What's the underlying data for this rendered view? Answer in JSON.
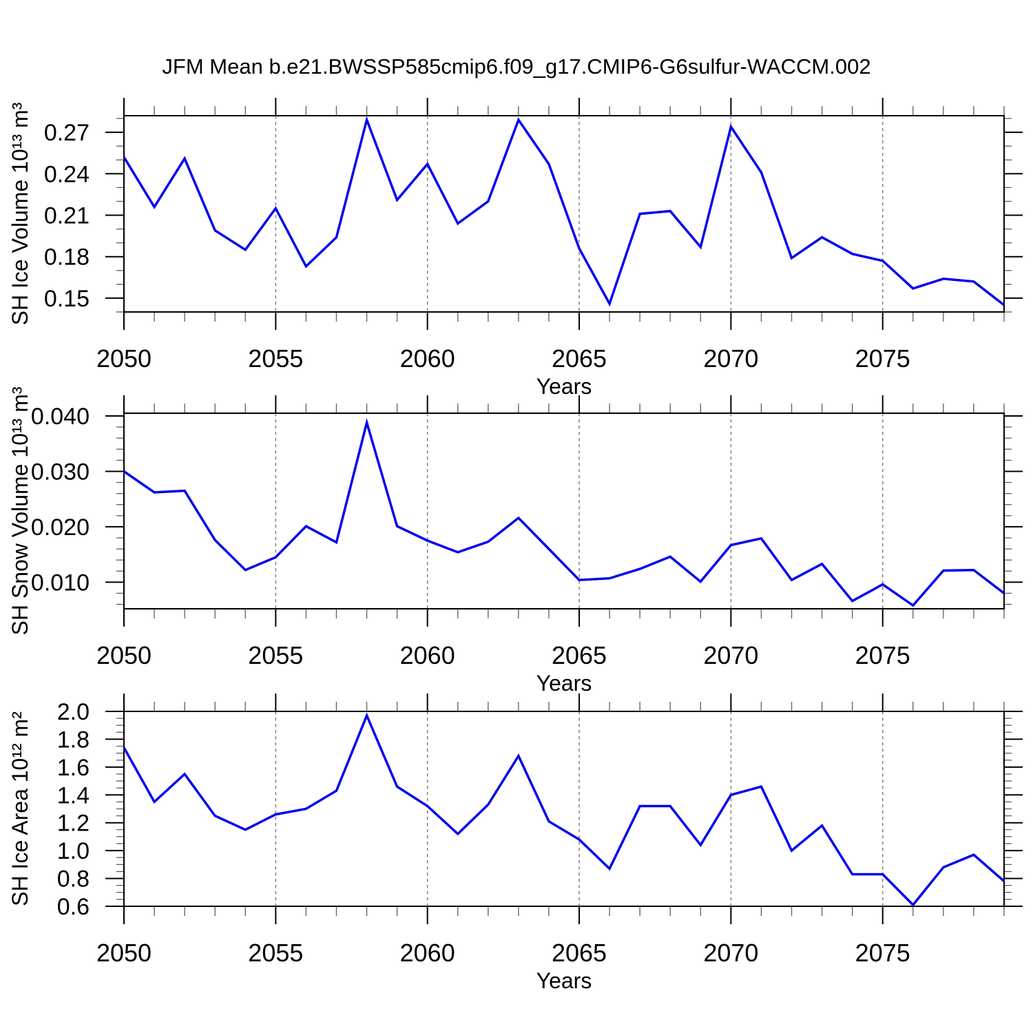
{
  "figure": {
    "title": "JFM Mean b.e21.BWSSP585cmip6.f09_g17.CMIP6-G6sulfur-WACCM.002"
  },
  "chart_data": [
    {
      "type": "line",
      "key": "sh-ice-volume",
      "ylabel": "SH Ice Volume 10¹³ m³",
      "xlabel": "Years",
      "x": [
        2050,
        2051,
        2052,
        2053,
        2054,
        2055,
        2056,
        2057,
        2058,
        2059,
        2060,
        2061,
        2062,
        2063,
        2064,
        2065,
        2066,
        2067,
        2068,
        2069,
        2070,
        2071,
        2072,
        2073,
        2074,
        2075,
        2076,
        2077,
        2078,
        2079
      ],
      "series": [
        {
          "name": "SH Ice Volume",
          "color": "#0000ee",
          "values": [
            0.252,
            0.216,
            0.251,
            0.199,
            0.185,
            0.215,
            0.173,
            0.194,
            0.279,
            0.221,
            0.247,
            0.204,
            0.22,
            0.279,
            0.247,
            0.186,
            0.146,
            0.211,
            0.213,
            0.187,
            0.274,
            0.241,
            0.179,
            0.194,
            0.182,
            0.177,
            0.157,
            0.164,
            0.162,
            0.145
          ]
        }
      ],
      "xlim": [
        2050,
        2079
      ],
      "ylim": [
        0.14,
        0.282
      ],
      "yticks_major": [
        0.27,
        0.24,
        0.21,
        0.18,
        0.15
      ],
      "ytick_labels": [
        "0.27",
        "0.24",
        "0.21",
        "0.18",
        "0.15"
      ],
      "ytick_minor_step": 0.01,
      "xticks_major": [
        2050,
        2055,
        2060,
        2065,
        2070,
        2075
      ],
      "xtick_labels": [
        "2050",
        "2055",
        "2060",
        "2065",
        "2070",
        "2075"
      ],
      "xtick_minor_step": 1,
      "gridlines_x": [
        2055,
        2060,
        2065,
        2070,
        2075
      ],
      "grid_style": "dashed-vertical",
      "legend": "none"
    },
    {
      "type": "line",
      "key": "sh-snow-volume",
      "ylabel": "SH Snow Volume 10¹³ m³",
      "xlabel": "Years",
      "x": [
        2050,
        2051,
        2052,
        2053,
        2054,
        2055,
        2056,
        2057,
        2058,
        2059,
        2060,
        2061,
        2062,
        2063,
        2064,
        2065,
        2066,
        2067,
        2068,
        2069,
        2070,
        2071,
        2072,
        2073,
        2074,
        2075,
        2076,
        2077,
        2078,
        2079
      ],
      "series": [
        {
          "name": "SH Snow Volume",
          "color": "#0000ee",
          "values": [
            0.03,
            0.0262,
            0.0265,
            0.0176,
            0.0122,
            0.0145,
            0.0201,
            0.0172,
            0.0388,
            0.0201,
            0.0175,
            0.0154,
            0.0173,
            0.0216,
            0.016,
            0.0104,
            0.0107,
            0.0124,
            0.0146,
            0.0101,
            0.0167,
            0.0179,
            0.0104,
            0.0133,
            0.0066,
            0.0096,
            0.0058,
            0.0121,
            0.0122,
            0.008
          ]
        }
      ],
      "xlim": [
        2050,
        2079
      ],
      "ylim": [
        0.0052,
        0.0405
      ],
      "yticks_major": [
        0.04,
        0.03,
        0.02,
        0.01
      ],
      "ytick_labels": [
        "0.040",
        "0.030",
        "0.020",
        "0.010"
      ],
      "ytick_minor_step": 0.002,
      "xticks_major": [
        2050,
        2055,
        2060,
        2065,
        2070,
        2075
      ],
      "xtick_labels": [
        "2050",
        "2055",
        "2060",
        "2065",
        "2070",
        "2075"
      ],
      "xtick_minor_step": 1,
      "gridlines_x": [
        2055,
        2060,
        2065,
        2070,
        2075
      ],
      "grid_style": "dashed-vertical",
      "legend": "none"
    },
    {
      "type": "line",
      "key": "sh-ice-area",
      "ylabel": "SH Ice Area 10¹² m²",
      "xlabel": "Years",
      "x": [
        2050,
        2051,
        2052,
        2053,
        2054,
        2055,
        2056,
        2057,
        2058,
        2059,
        2060,
        2061,
        2062,
        2063,
        2064,
        2065,
        2066,
        2067,
        2068,
        2069,
        2070,
        2071,
        2072,
        2073,
        2074,
        2075,
        2076,
        2077,
        2078,
        2079
      ],
      "series": [
        {
          "name": "SH Ice Area",
          "color": "#0000ee",
          "values": [
            1.74,
            1.35,
            1.55,
            1.25,
            1.15,
            1.26,
            1.3,
            1.43,
            1.97,
            1.46,
            1.32,
            1.12,
            1.33,
            1.68,
            1.21,
            1.08,
            0.87,
            1.32,
            1.32,
            1.04,
            1.4,
            1.46,
            1.0,
            1.18,
            0.83,
            0.83,
            0.61,
            0.88,
            0.97,
            0.78
          ]
        }
      ],
      "xlim": [
        2050,
        2079
      ],
      "ylim": [
        0.6,
        2.0
      ],
      "yticks_major": [
        2.0,
        1.8,
        1.6,
        1.4,
        1.2,
        1.0,
        0.8,
        0.6
      ],
      "ytick_labels": [
        "2.0",
        "1.8",
        "1.6",
        "1.4",
        "1.2",
        "1.0",
        "0.8",
        "0.6"
      ],
      "ytick_minor_step": 0.05,
      "xticks_major": [
        2050,
        2055,
        2060,
        2065,
        2070,
        2075
      ],
      "xtick_labels": [
        "2050",
        "2055",
        "2060",
        "2065",
        "2070",
        "2075"
      ],
      "xtick_minor_step": 1,
      "gridlines_x": [
        2055,
        2060,
        2065,
        2070,
        2075
      ],
      "grid_style": "dashed-vertical",
      "legend": "none"
    }
  ]
}
